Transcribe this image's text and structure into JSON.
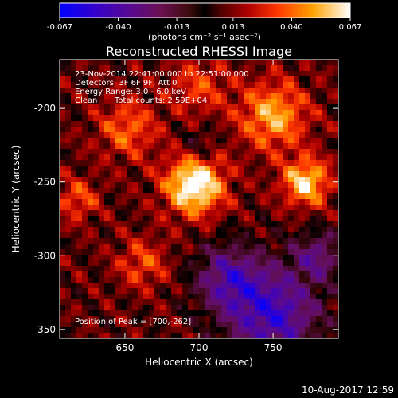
{
  "chart_data": {
    "type": "heatmap",
    "title": "Reconstructed RHESSI Image",
    "colorbar": {
      "ticks": [
        "-0.067",
        "-0.040",
        "-0.013",
        "0.013",
        "0.040",
        "0.067"
      ],
      "values": [
        -0.067,
        -0.04,
        -0.013,
        0.013,
        0.04,
        0.067
      ],
      "unit_label": "(photons cm⁻² s⁻¹ asec⁻²)",
      "range": [
        -0.067,
        0.067
      ],
      "colormap": "rhessi-fire"
    },
    "xlabel": "Heliocentric X (arcsec)",
    "ylabel": "Heliocentric Y (arcsec)",
    "xlim": [
      606,
      794
    ],
    "ylim": [
      -356,
      -167
    ],
    "xticks": [
      650,
      700,
      750
    ],
    "yticks": [
      -200,
      -250,
      -300,
      -350
    ],
    "annotations": [
      "23-Nov-2014 22:41:00.000 to 22:51:00.000",
      "Detectors: 3F 6F 9F, Att 0",
      "Energy Range: 3.0 - 6.0 keV",
      "Clean",
      "Total counts: 2.59E+04"
    ],
    "peak_label": "Position of Peak = [700,-262]",
    "peak": {
      "x": 700,
      "y": -262
    },
    "features": [
      {
        "x": 697,
        "y": -252,
        "level": 1.0,
        "width": 14
      },
      {
        "x": 772,
        "y": -250,
        "level": 0.8,
        "width": 11
      },
      {
        "x": 750,
        "y": -205,
        "level": 0.65,
        "width": 16
      },
      {
        "x": 652,
        "y": -214,
        "level": 0.45,
        "width": 14
      },
      {
        "x": 618,
        "y": -262,
        "level": 0.4,
        "width": 10
      },
      {
        "x": 662,
        "y": -305,
        "level": 0.38,
        "width": 12
      },
      {
        "x": 700,
        "y": -185,
        "level": 0.35,
        "width": 14
      },
      {
        "x": 750,
        "y": -340,
        "level": -0.8,
        "width": 22
      },
      {
        "x": 720,
        "y": -315,
        "level": -0.6,
        "width": 16
      },
      {
        "x": 780,
        "y": -300,
        "level": -0.5,
        "width": 12
      },
      {
        "x": 700,
        "y": -225,
        "level": -0.25,
        "width": 9
      }
    ],
    "grid": false
  },
  "footer": {
    "timestamp": "10-Aug-2017 12:59"
  }
}
